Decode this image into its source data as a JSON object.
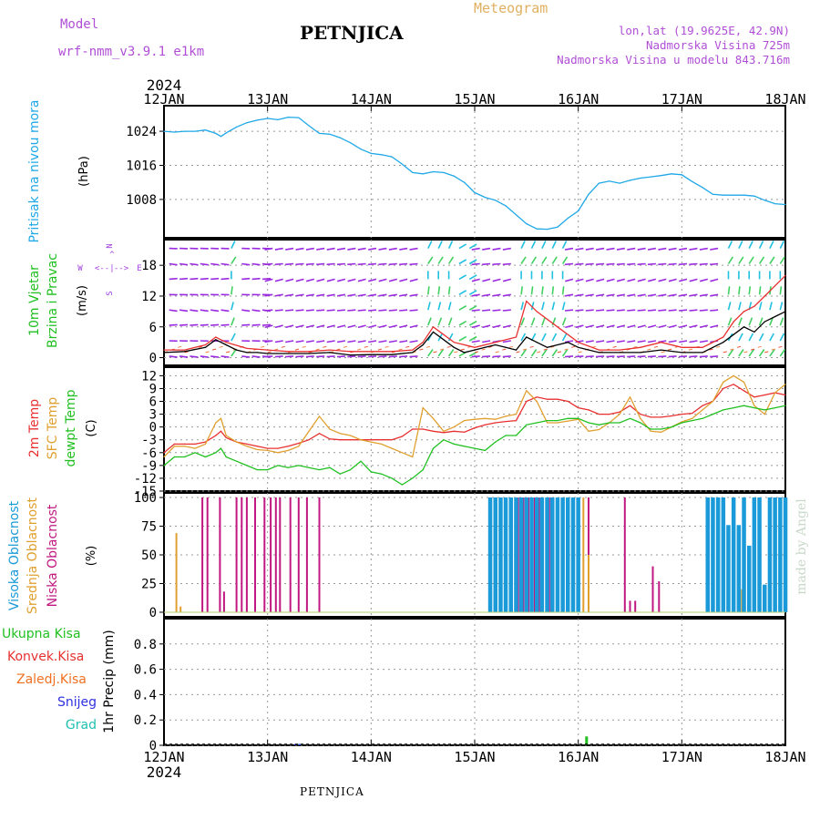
{
  "header": {
    "model_label": "Model",
    "model_name": "wrf-nmm_v3.9.1  e1km",
    "title": "PETNJICA",
    "meteogram_label": "Meteogram",
    "lonlat": "lon,lat (19.9625E, 42.9N)",
    "altitude": "Nadmorska Visina 725m",
    "model_altitude": "Nadmorska Visina u modelu 843.716m"
  },
  "footer": {
    "station": "PETNJICA"
  },
  "watermark": "made by Angel",
  "colors": {
    "pressure": "#1fa8e8",
    "temp2m": "#e83030",
    "sfc_temp": "#e0a030",
    "dewpt": "#20c020",
    "cloud_high": "#1a9ad8",
    "cloud_mid": "#e0a030",
    "cloud_low": "#c01880",
    "wind_label_green": "#20c020",
    "wind_label_purple": "#a040e0",
    "rain_total": "#20c020",
    "rain_conv": "#e83030",
    "rain_freezing": "#f07020",
    "snow": "#3030e0",
    "hail": "#20c0b0"
  },
  "chart_data": [
    {
      "type": "line",
      "panel": "pressure",
      "ylabel": [
        "Pritisak na nivou mora",
        "(hPa)"
      ],
      "year_label": "2024",
      "x_ticks": [
        "12JAN",
        "13JAN",
        "14JAN",
        "15JAN",
        "16JAN",
        "17JAN",
        "18JAN"
      ],
      "xlim": [
        0,
        6
      ],
      "ylim": [
        999,
        1030
      ],
      "y_ticks": [
        1008,
        1016,
        1024
      ],
      "grid": true,
      "series": [
        {
          "color": "#1fa8e8",
          "x": [
            0,
            0.1,
            0.2,
            0.3,
            0.4,
            0.5,
            0.55,
            0.6,
            0.7,
            0.8,
            0.9,
            1.0,
            1.1,
            1.2,
            1.3,
            1.4,
            1.5,
            1.6,
            1.7,
            1.8,
            1.9,
            2.0,
            2.1,
            2.2,
            2.3,
            2.4,
            2.5,
            2.6,
            2.7,
            2.8,
            2.9,
            3.0,
            3.1,
            3.2,
            3.3,
            3.4,
            3.5,
            3.6,
            3.7,
            3.8,
            3.9,
            4.0,
            4.1,
            4.2,
            4.3,
            4.4,
            4.5,
            4.6,
            4.7,
            4.8,
            4.9,
            5.0,
            5.1,
            5.2,
            5.3,
            5.4,
            5.5,
            5.6,
            5.7,
            5.8,
            5.9,
            6.0
          ],
          "y": [
            1024,
            1023.8,
            1024,
            1024,
            1024.3,
            1023.5,
            1022.8,
            1023.6,
            1025,
            1026,
            1026.6,
            1027,
            1026.7,
            1027.3,
            1027.2,
            1025.3,
            1023.5,
            1023.3,
            1022.5,
            1021.3,
            1019.8,
            1018.8,
            1018.5,
            1018,
            1016.3,
            1014.3,
            1014,
            1014.5,
            1014.3,
            1013.5,
            1012,
            1009.6,
            1008.5,
            1007.8,
            1006.5,
            1004.4,
            1002.3,
            1001.1,
            1001,
            1001.5,
            1003.6,
            1005.3,
            1009.2,
            1011.8,
            1012.3,
            1011.8,
            1012.5,
            1013,
            1013.3,
            1013.6,
            1014,
            1013.8,
            1012.2,
            1010.8,
            1009.2,
            1009,
            1009,
            1009,
            1008.8,
            1007.8,
            1007,
            1006.8
          ]
        }
      ]
    },
    {
      "type": "line",
      "panel": "wind",
      "ylabel": [
        "10m Vjetar",
        "Brzina i Pravac",
        "(m/s)"
      ],
      "direction_key": {
        "north": "N",
        "south": "S",
        "east": "E",
        "west": "W",
        "left_arrow": "<--",
        "right_arrow": "-->",
        "up_arrow": "^",
        "bar": "|"
      },
      "xlim": [
        0,
        6
      ],
      "ylim": [
        -1.5,
        23
      ],
      "y_ticks": [
        0,
        6,
        12,
        18
      ],
      "grid": true,
      "series": [
        {
          "name": "speed",
          "color": "#000000",
          "x": [
            0,
            0.2,
            0.4,
            0.5,
            0.6,
            0.7,
            0.8,
            0.9,
            1.0,
            1.2,
            1.4,
            1.6,
            1.8,
            2.0,
            2.2,
            2.4,
            2.5,
            2.6,
            2.7,
            2.8,
            2.9,
            3.0,
            3.1,
            3.2,
            3.3,
            3.4,
            3.5,
            3.6,
            3.7,
            3.8,
            3.9,
            4.0,
            4.2,
            4.4,
            4.6,
            4.8,
            5.0,
            5.2,
            5.3,
            5.4,
            5.5,
            5.6,
            5.7,
            5.8,
            5.9,
            6.0
          ],
          "y": [
            1,
            1.2,
            2,
            3.5,
            2.5,
            1.5,
            1,
            1,
            0.8,
            0.8,
            0.8,
            1,
            0.5,
            0.6,
            0.6,
            1,
            2.5,
            5,
            3.5,
            2,
            1,
            1.5,
            2,
            2.5,
            2,
            1.5,
            4,
            3,
            2,
            2.5,
            3,
            2,
            1,
            1,
            1,
            1.5,
            1,
            1,
            2,
            3,
            4.5,
            6,
            5,
            7,
            8,
            9
          ]
        },
        {
          "name": "gust",
          "color": "#e83030",
          "x": [
            0,
            0.2,
            0.4,
            0.5,
            0.6,
            0.8,
            1.0,
            1.2,
            1.4,
            1.6,
            1.8,
            2.0,
            2.2,
            2.4,
            2.5,
            2.6,
            2.8,
            3.0,
            3.2,
            3.4,
            3.5,
            3.6,
            3.8,
            4.0,
            4.2,
            4.4,
            4.6,
            4.8,
            5.0,
            5.2,
            5.4,
            5.5,
            5.6,
            5.7,
            5.8,
            5.9,
            6.0
          ],
          "y": [
            1.5,
            1.5,
            2.5,
            4,
            3,
            1.8,
            1.5,
            1.2,
            1.2,
            1.5,
            1.2,
            1.2,
            1.2,
            1.5,
            3,
            6,
            3,
            2,
            3,
            4,
            11,
            9,
            6,
            3,
            1.5,
            1.5,
            2,
            3,
            2,
            2,
            4,
            7,
            9,
            10,
            12,
            14,
            16
          ]
        }
      ],
      "barbs_by_day": [
        {
          "day": "12JAN",
          "direction": "W-E flow, light"
        },
        {
          "day": "13JAN",
          "direction": "E-W flow, light"
        }
      ]
    },
    {
      "type": "line",
      "panel": "temperature",
      "ylabel": [
        "2m Temp",
        "SFC Temp",
        "dewpt Temp",
        "(C)"
      ],
      "xlim": [
        0,
        6
      ],
      "ylim": [
        -15,
        14
      ],
      "y_ticks": [
        -15,
        -12,
        -9,
        -6,
        -3,
        0,
        3,
        6,
        9,
        12
      ],
      "grid": true,
      "series": [
        {
          "name": "2m Temp",
          "color": "#e83030",
          "x": [
            0,
            0.1,
            0.2,
            0.3,
            0.4,
            0.5,
            0.55,
            0.6,
            0.7,
            0.8,
            0.9,
            1.0,
            1.1,
            1.2,
            1.3,
            1.4,
            1.5,
            1.6,
            1.7,
            1.8,
            1.9,
            2.0,
            2.1,
            2.2,
            2.3,
            2.4,
            2.5,
            2.6,
            2.7,
            2.8,
            2.9,
            3.0,
            3.1,
            3.2,
            3.3,
            3.4,
            3.5,
            3.6,
            3.7,
            3.8,
            3.9,
            4.0,
            4.1,
            4.2,
            4.3,
            4.4,
            4.5,
            4.6,
            4.7,
            4.8,
            4.9,
            5.0,
            5.1,
            5.2,
            5.3,
            5.4,
            5.5,
            5.6,
            5.7,
            5.8,
            5.9,
            6.0
          ],
          "y": [
            -6,
            -4,
            -4,
            -4,
            -3.5,
            -2,
            -1,
            -2.5,
            -3.5,
            -4,
            -4.5,
            -5,
            -5,
            -4.5,
            -3.8,
            -3,
            -1.5,
            -2.8,
            -3,
            -3,
            -3,
            -3,
            -3,
            -3,
            -2.2,
            -0.5,
            -0.5,
            -1,
            -1.3,
            -1,
            -1.2,
            -0.2,
            0.5,
            1,
            1.3,
            1.5,
            6,
            7,
            6.5,
            6.5,
            6,
            4.5,
            4,
            3,
            3,
            3.5,
            5,
            3,
            2.3,
            2.3,
            2.6,
            3,
            3.2,
            5,
            6,
            9,
            10,
            8.5,
            7,
            7.5,
            8,
            7.5
          ]
        },
        {
          "name": "SFC Temp",
          "color": "#e0a030",
          "x": [
            0,
            0.1,
            0.2,
            0.3,
            0.4,
            0.5,
            0.55,
            0.6,
            0.7,
            0.8,
            0.9,
            1.0,
            1.1,
            1.2,
            1.3,
            1.4,
            1.5,
            1.6,
            1.7,
            1.8,
            1.9,
            2.0,
            2.1,
            2.2,
            2.3,
            2.4,
            2.5,
            2.6,
            2.7,
            2.8,
            2.9,
            3.0,
            3.1,
            3.2,
            3.3,
            3.4,
            3.5,
            3.6,
            3.7,
            3.8,
            3.9,
            4.0,
            4.1,
            4.2,
            4.3,
            4.4,
            4.5,
            4.6,
            4.7,
            4.8,
            4.9,
            5.0,
            5.1,
            5.2,
            5.3,
            5.4,
            5.5,
            5.6,
            5.7,
            5.8,
            5.9,
            6.0
          ],
          "y": [
            -7,
            -4.5,
            -4.5,
            -5,
            -4,
            1,
            2,
            -2,
            -3.5,
            -4.5,
            -5.3,
            -5.5,
            -6,
            -5.5,
            -4.5,
            -1,
            2.5,
            -0.5,
            -1.5,
            -2,
            -3,
            -3.5,
            -4,
            -5,
            -6,
            -7,
            4.5,
            2,
            -1,
            0,
            1.5,
            1.8,
            2,
            1.8,
            2.5,
            3,
            8.5,
            6,
            1,
            1,
            1.4,
            1.8,
            -1,
            -0.6,
            1,
            3,
            7,
            2,
            -1,
            -1.2,
            0,
            1.2,
            2,
            4,
            6,
            10.5,
            12,
            10.5,
            5,
            3,
            8,
            10
          ]
        },
        {
          "name": "dewpt Temp",
          "color": "#20c020",
          "x": [
            0,
            0.1,
            0.2,
            0.3,
            0.4,
            0.5,
            0.55,
            0.6,
            0.7,
            0.8,
            0.9,
            1.0,
            1.1,
            1.2,
            1.3,
            1.4,
            1.5,
            1.6,
            1.7,
            1.8,
            1.9,
            2.0,
            2.1,
            2.2,
            2.3,
            2.4,
            2.5,
            2.6,
            2.7,
            2.8,
            2.9,
            3.0,
            3.1,
            3.2,
            3.3,
            3.4,
            3.5,
            3.6,
            3.7,
            3.8,
            3.9,
            4.0,
            4.1,
            4.2,
            4.3,
            4.4,
            4.5,
            4.6,
            4.7,
            4.8,
            4.9,
            5.0,
            5.1,
            5.2,
            5.3,
            5.4,
            5.5,
            5.6,
            5.7,
            5.8,
            5.9,
            6.0
          ],
          "y": [
            -9,
            -7,
            -7,
            -6,
            -7,
            -6,
            -5,
            -7,
            -8,
            -9,
            -10,
            -10,
            -9,
            -9.5,
            -9,
            -9.5,
            -10,
            -9.5,
            -11,
            -10,
            -8,
            -10.5,
            -11,
            -12,
            -13.5,
            -12,
            -10,
            -5,
            -3,
            -4,
            -4.5,
            -5,
            -5.5,
            -3.5,
            -2,
            -2,
            0.5,
            1,
            1.5,
            1.5,
            2,
            2,
            1,
            0.5,
            1,
            1,
            2,
            1,
            -0.5,
            -0.5,
            0,
            1,
            1.5,
            2,
            3,
            4,
            4.5,
            5,
            4.5,
            4,
            4.5,
            5
          ]
        }
      ]
    },
    {
      "type": "bar",
      "panel": "cloud",
      "ylabel": [
        "Visoka Oblacnost",
        "Srednja Oblacnost",
        "Niska Oblacnost",
        "(%)"
      ],
      "xlim": [
        0,
        6
      ],
      "ylim": [
        0,
        100
      ],
      "y_ticks": [
        0,
        25,
        50,
        75,
        100
      ],
      "grid": true,
      "series": [
        {
          "name": "Niska Oblacnost",
          "color": "#c01880",
          "x": [
            0.37,
            0.42,
            0.54,
            0.58,
            0.7,
            0.75,
            0.8,
            0.88,
            0.97,
            1.03,
            1.08,
            1.12,
            1.22,
            1.3,
            1.38,
            1.5,
            3.42,
            3.47,
            3.52,
            3.58,
            3.62,
            3.66,
            3.72,
            3.8,
            3.85,
            3.95,
            4.0,
            4.1,
            4.45,
            4.5,
            4.55,
            4.72,
            4.78
          ],
          "y": [
            100,
            100,
            100,
            18,
            100,
            100,
            100,
            100,
            100,
            100,
            100,
            100,
            100,
            100,
            100,
            100,
            100,
            100,
            100,
            100,
            100,
            100,
            100,
            80,
            100,
            100,
            100,
            100,
            100,
            10,
            10,
            40,
            27
          ]
        },
        {
          "name": "Srednja Oblacnost",
          "color": "#e0a030",
          "x": [
            0.12,
            0.16,
            3.4,
            3.45,
            3.5,
            3.55,
            3.6,
            3.65,
            3.7,
            3.75,
            3.8,
            3.85,
            3.9,
            3.95,
            4.0,
            4.05,
            4.1,
            5.55,
            5.58
          ],
          "y": [
            69,
            5,
            100,
            100,
            100,
            100,
            100,
            100,
            100,
            100,
            100,
            100,
            100,
            100,
            100,
            100,
            50,
            15,
            20
          ]
        },
        {
          "name": "Visoka Oblacnost",
          "color": "#1a9ad8",
          "x": [
            3.15,
            3.2,
            3.25,
            3.3,
            3.35,
            3.4,
            3.45,
            3.5,
            3.55,
            3.6,
            3.65,
            3.7,
            3.75,
            3.8,
            3.85,
            3.9,
            3.95,
            4.0,
            5.25,
            5.3,
            5.35,
            5.4,
            5.45,
            5.5,
            5.55,
            5.6,
            5.65,
            5.7,
            5.75,
            5.8,
            5.85,
            5.9,
            5.95,
            6.0
          ],
          "y": [
            100,
            100,
            100,
            100,
            100,
            100,
            100,
            100,
            100,
            100,
            100,
            100,
            100,
            100,
            100,
            100,
            100,
            100,
            100,
            100,
            100,
            100,
            76,
            100,
            76,
            100,
            58,
            100,
            100,
            24,
            100,
            100,
            100,
            100
          ]
        }
      ]
    },
    {
      "type": "bar",
      "panel": "precip",
      "ylabel": "1hr Precip (mm)",
      "legend": [
        "Ukupna  Kisa",
        "Konvek.Kisa",
        "Zaledj.Kisa",
        "Snijeg",
        "Grad"
      ],
      "year_label": "2024",
      "x_ticks": [
        "12JAN",
        "13JAN",
        "14JAN",
        "15JAN",
        "16JAN",
        "17JAN",
        "18JAN"
      ],
      "xlim": [
        0,
        6
      ],
      "ylim": [
        0,
        1.0
      ],
      "y_ticks": [
        0,
        0.2,
        0.4,
        0.6,
        0.8
      ],
      "grid": true,
      "series": [
        {
          "name": "Ukupna  Kisa",
          "color": "#20c020",
          "x": [
            1.3,
            1.33,
            4.08
          ],
          "y": [
            0.01,
            0.01,
            0.07
          ]
        },
        {
          "name": "Snijeg",
          "color": "#3030e0",
          "x": [
            1.27,
            1.31
          ],
          "y": [
            0.01,
            0.01
          ]
        }
      ]
    }
  ]
}
